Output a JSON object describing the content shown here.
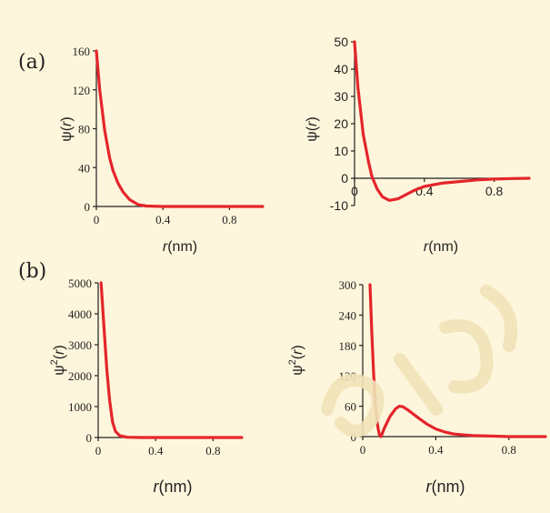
{
  "labels": {
    "a": "(a)",
    "b": "(b)"
  },
  "colors": {
    "background": "#fdf6dc",
    "curve": "#e5252b",
    "axis": "#231f20"
  },
  "chart_data": [
    {
      "type": "line",
      "panel": "(a)",
      "xlabel_pre": "r",
      "xlabel_post": "(nm)",
      "ylabel_main": "ψ(",
      "ylabel_var": "r",
      "ylabel_close": ")",
      "xlim": [
        0,
        1.0
      ],
      "ylim": [
        0,
        160
      ],
      "xticks": [
        0,
        0.4,
        0.8
      ],
      "xtick_labels": [
        "0",
        "0.4",
        "0.8"
      ],
      "yticks": [
        0,
        40,
        80,
        120,
        160
      ],
      "ytick_labels": [
        "0",
        "40",
        "80",
        "120",
        "160"
      ],
      "series": [
        {
          "x": [
            0,
            0.02,
            0.05,
            0.08,
            0.1,
            0.13,
            0.16,
            0.2,
            0.25,
            0.3,
            0.4,
            0.6,
            0.8,
            1.0
          ],
          "y": [
            160,
            120,
            78,
            50,
            37,
            24,
            15,
            7,
            2,
            0.5,
            0,
            0,
            0,
            0
          ]
        }
      ]
    },
    {
      "type": "line",
      "panel": "(a) right",
      "xlabel_pre": "r",
      "xlabel_post": "(nm)",
      "ylabel_main": "ψ(",
      "ylabel_var": "r",
      "ylabel_close": ")",
      "xlim": [
        0,
        1.0
      ],
      "ylim": [
        -10,
        50
      ],
      "xticks": [
        0,
        0.4,
        0.8
      ],
      "xtick_labels": [
        "0",
        "0.4",
        "0.8"
      ],
      "yticks": [
        -10,
        0,
        10,
        20,
        30,
        40,
        50
      ],
      "ytick_labels": [
        "-10",
        "0",
        "10",
        "20",
        "30",
        "40",
        "50"
      ],
      "series": [
        {
          "x": [
            0,
            0.02,
            0.05,
            0.08,
            0.1,
            0.13,
            0.16,
            0.2,
            0.25,
            0.3,
            0.35,
            0.4,
            0.5,
            0.6,
            0.7,
            0.8,
            0.9,
            1.0
          ],
          "y": [
            50,
            33,
            16,
            6,
            0.5,
            -4,
            -6.8,
            -8.1,
            -7.5,
            -5.8,
            -4.2,
            -3,
            -1.8,
            -1.2,
            -0.6,
            -0.3,
            -0.1,
            0
          ]
        }
      ]
    },
    {
      "type": "line",
      "panel": "(b)",
      "xlabel_pre": "r",
      "xlabel_post": "(nm)",
      "ylabel_main": "ψ",
      "ylabel_sup": "2",
      "ylabel_open": "(",
      "ylabel_var": "r",
      "ylabel_close": ")",
      "xlim": [
        0,
        1.0
      ],
      "ylim": [
        0,
        5000
      ],
      "xticks": [
        0,
        0.4,
        0.8
      ],
      "xtick_labels": [
        "0",
        "0.4",
        "0.8"
      ],
      "yticks": [
        0,
        1000,
        2000,
        3000,
        4000,
        5000
      ],
      "ytick_labels": [
        "0",
        "1000",
        "2000",
        "3000",
        "4000",
        "5000"
      ],
      "series": [
        {
          "x": [
            0.02,
            0.04,
            0.06,
            0.08,
            0.1,
            0.12,
            0.15,
            0.2,
            0.3,
            0.5,
            0.8,
            1.0
          ],
          "y": [
            5000,
            3600,
            2200,
            1200,
            500,
            200,
            60,
            10,
            0,
            0,
            0,
            0
          ]
        }
      ]
    },
    {
      "type": "line",
      "panel": "(b) right",
      "xlabel_pre": "r",
      "xlabel_post": "(nm)",
      "ylabel_main": "ψ",
      "ylabel_sup": "2",
      "ylabel_open": "(",
      "ylabel_var": "r",
      "ylabel_close": ")",
      "xlim": [
        0,
        1.0
      ],
      "ylim": [
        0,
        300
      ],
      "xticks": [
        0,
        0.4,
        0.8
      ],
      "xtick_labels": [
        "0",
        "0.4",
        "0.8"
      ],
      "yticks": [
        0,
        60,
        120,
        180,
        240,
        300
      ],
      "ytick_labels": [
        "0",
        "60",
        "120",
        "180",
        "240",
        "300"
      ],
      "series": [
        {
          "x": [
            0.04,
            0.05,
            0.06,
            0.07,
            0.08,
            0.09,
            0.1,
            0.12,
            0.15,
            0.18,
            0.2,
            0.22,
            0.25,
            0.3,
            0.35,
            0.4,
            0.45,
            0.5,
            0.6,
            0.7,
            0.8,
            1.0
          ],
          "y": [
            300,
            200,
            120,
            60,
            25,
            5,
            0,
            18,
            40,
            55,
            60,
            59,
            52,
            38,
            25,
            15,
            9,
            5,
            2,
            1,
            0,
            0
          ]
        }
      ]
    }
  ]
}
